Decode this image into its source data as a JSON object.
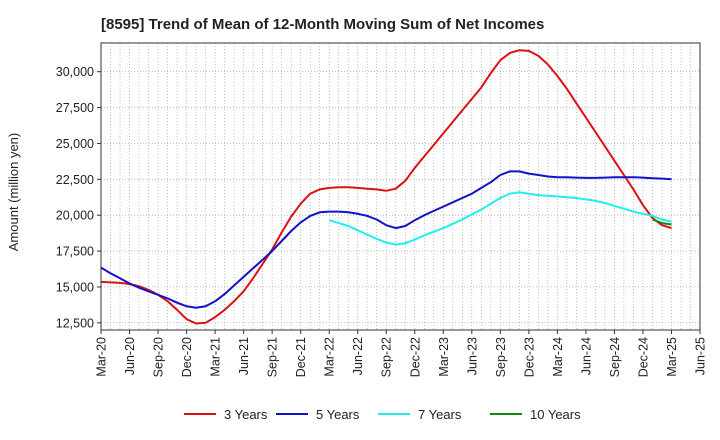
{
  "page": {
    "title": "[8595]  Trend of Mean of 12-Month Moving Sum of Net Incomes"
  },
  "chart_data": {
    "type": "line",
    "title": "[8595]  Trend of Mean of 12-Month Moving Sum of Net Incomes",
    "xlabel": "",
    "ylabel": "Amount (million yen)",
    "grid": true,
    "legend_position": "bottom",
    "ylim": [
      12000,
      32000
    ],
    "yticks": [
      12500,
      15000,
      17500,
      20000,
      22500,
      25000,
      27500,
      30000
    ],
    "ytick_labels": [
      "12,500",
      "15,000",
      "17,500",
      "20,000",
      "22,500",
      "25,000",
      "27,500",
      "30,000"
    ],
    "xticks": [
      "Mar-20",
      "Jun-20",
      "Sep-20",
      "Dec-20",
      "Mar-21",
      "Jun-21",
      "Sep-21",
      "Dec-21",
      "Mar-22",
      "Jun-22",
      "Sep-22",
      "Dec-22",
      "Mar-23",
      "Jun-23",
      "Sep-23",
      "Dec-23",
      "Mar-24",
      "Jun-24",
      "Sep-24",
      "Dec-24",
      "Mar-25",
      "Jun-25"
    ],
    "series": [
      {
        "name": "3 Years",
        "color": "#dd1111",
        "x": [
          "2020-03",
          "2020-04",
          "2020-05",
          "2020-06",
          "2020-07",
          "2020-08",
          "2020-09",
          "2020-10",
          "2020-11",
          "2020-12",
          "2021-01",
          "2021-02",
          "2021-03",
          "2021-04",
          "2021-05",
          "2021-06",
          "2021-07",
          "2021-08",
          "2021-09",
          "2021-10",
          "2021-11",
          "2021-12",
          "2022-01",
          "2022-02",
          "2022-03",
          "2022-04",
          "2022-05",
          "2022-06",
          "2022-07",
          "2022-08",
          "2022-09",
          "2022-10",
          "2022-11",
          "2022-12",
          "2023-01",
          "2023-02",
          "2023-03",
          "2023-04",
          "2023-05",
          "2023-06",
          "2023-07",
          "2023-08",
          "2023-09",
          "2023-10",
          "2023-11",
          "2023-12",
          "2024-01",
          "2024-02",
          "2024-03",
          "2024-04",
          "2024-05",
          "2024-06",
          "2024-07",
          "2024-08",
          "2024-09",
          "2024-10",
          "2024-11",
          "2024-12",
          "2025-01",
          "2025-02",
          "2025-03"
        ],
        "values": [
          15350,
          15320,
          15280,
          15200,
          15050,
          14800,
          14450,
          14000,
          13400,
          12750,
          12450,
          12500,
          12900,
          13400,
          14000,
          14700,
          15600,
          16600,
          17600,
          18800,
          19900,
          20800,
          21500,
          21800,
          21900,
          21950,
          21950,
          21900,
          21850,
          21800,
          21700,
          21850,
          22400,
          23300,
          24100,
          24900,
          25700,
          26500,
          27300,
          28100,
          28900,
          29900,
          30800,
          31300,
          31500,
          31450,
          31100,
          30500,
          29700,
          28800,
          27800,
          26800,
          25800,
          24800,
          23800,
          22800,
          21800,
          20700,
          19800,
          19300,
          19100
        ]
      },
      {
        "name": "5 Years",
        "color": "#1111cc",
        "x": [
          "2020-03",
          "2020-04",
          "2020-05",
          "2020-06",
          "2020-07",
          "2020-08",
          "2020-09",
          "2020-10",
          "2020-11",
          "2020-12",
          "2021-01",
          "2021-02",
          "2021-03",
          "2021-04",
          "2021-05",
          "2021-06",
          "2021-07",
          "2021-08",
          "2021-09",
          "2021-10",
          "2021-11",
          "2021-12",
          "2022-01",
          "2022-02",
          "2022-03",
          "2022-04",
          "2022-05",
          "2022-06",
          "2022-07",
          "2022-08",
          "2022-09",
          "2022-10",
          "2022-11",
          "2022-12",
          "2023-01",
          "2023-02",
          "2023-03",
          "2023-04",
          "2023-05",
          "2023-06",
          "2023-07",
          "2023-08",
          "2023-09",
          "2023-10",
          "2023-11",
          "2023-12",
          "2024-01",
          "2024-02",
          "2024-03",
          "2024-04",
          "2024-05",
          "2024-06",
          "2024-07",
          "2024-08",
          "2024-09",
          "2024-10",
          "2024-11",
          "2024-12",
          "2025-01",
          "2025-02",
          "2025-03"
        ],
        "values": [
          16350,
          15950,
          15600,
          15250,
          14950,
          14700,
          14450,
          14200,
          13900,
          13650,
          13550,
          13650,
          14000,
          14500,
          15100,
          15700,
          16300,
          16900,
          17500,
          18200,
          18900,
          19500,
          19950,
          20200,
          20250,
          20250,
          20200,
          20100,
          19950,
          19700,
          19300,
          19100,
          19250,
          19650,
          20000,
          20300,
          20600,
          20900,
          21200,
          21500,
          21900,
          22300,
          22800,
          23050,
          23050,
          22900,
          22800,
          22700,
          22650,
          22650,
          22620,
          22600,
          22600,
          22620,
          22650,
          22650,
          22650,
          22620,
          22580,
          22550,
          22500
        ]
      },
      {
        "name": "7 Years",
        "color": "#22eeee",
        "x": [
          "2022-03",
          "2022-04",
          "2022-05",
          "2022-06",
          "2022-07",
          "2022-08",
          "2022-09",
          "2022-10",
          "2022-11",
          "2022-12",
          "2023-01",
          "2023-02",
          "2023-03",
          "2023-04",
          "2023-05",
          "2023-06",
          "2023-07",
          "2023-08",
          "2023-09",
          "2023-10",
          "2023-11",
          "2023-12",
          "2024-01",
          "2024-02",
          "2024-03",
          "2024-04",
          "2024-05",
          "2024-06",
          "2024-07",
          "2024-08",
          "2024-09",
          "2024-10",
          "2024-11",
          "2024-12",
          "2025-01",
          "2025-02",
          "2025-03"
        ],
        "values": [
          19650,
          19450,
          19250,
          18950,
          18650,
          18350,
          18100,
          17950,
          18050,
          18300,
          18600,
          18850,
          19100,
          19400,
          19700,
          20050,
          20400,
          20800,
          21200,
          21500,
          21600,
          21500,
          21400,
          21350,
          21300,
          21250,
          21200,
          21100,
          21000,
          20850,
          20650,
          20450,
          20250,
          20100,
          19950,
          19700,
          19550
        ]
      },
      {
        "name": "10 Years",
        "color": "#118811",
        "x": [
          "2025-01",
          "2025-02",
          "2025-03"
        ],
        "values": [
          19700,
          19450,
          19350
        ]
      }
    ]
  }
}
